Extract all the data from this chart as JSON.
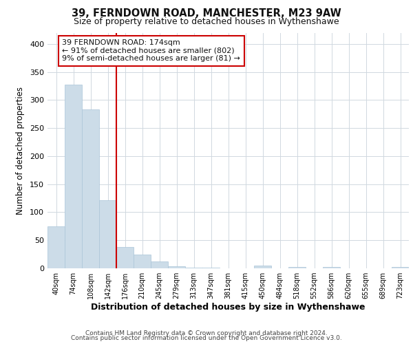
{
  "title1": "39, FERNDOWN ROAD, MANCHESTER, M23 9AW",
  "title2": "Size of property relative to detached houses in Wythenshawe",
  "xlabel": "Distribution of detached houses by size in Wythenshawe",
  "ylabel": "Number of detached properties",
  "bin_labels": [
    "40sqm",
    "74sqm",
    "108sqm",
    "142sqm",
    "176sqm",
    "210sqm",
    "245sqm",
    "279sqm",
    "313sqm",
    "347sqm",
    "381sqm",
    "415sqm",
    "450sqm",
    "484sqm",
    "518sqm",
    "552sqm",
    "586sqm",
    "620sqm",
    "655sqm",
    "689sqm",
    "723sqm"
  ],
  "bar_heights": [
    75,
    328,
    283,
    122,
    38,
    24,
    12,
    4,
    1,
    1,
    0,
    0,
    5,
    0,
    3,
    0,
    2,
    0,
    0,
    0,
    2
  ],
  "bar_color": "#ccdce8",
  "bar_edge_color": "#aac4d8",
  "vline_color": "#cc0000",
  "vline_pos": 3.5,
  "annotation_text": "39 FERNDOWN ROAD: 174sqm\n← 91% of detached houses are smaller (802)\n9% of semi-detached houses are larger (81) →",
  "ylim": [
    0,
    420
  ],
  "yticks": [
    0,
    50,
    100,
    150,
    200,
    250,
    300,
    350,
    400
  ],
  "footer1": "Contains HM Land Registry data © Crown copyright and database right 2024.",
  "footer2": "Contains public sector information licensed under the Open Government Licence v3.0.",
  "bg_color": "#ffffff",
  "plot_bg_color": "#ffffff"
}
